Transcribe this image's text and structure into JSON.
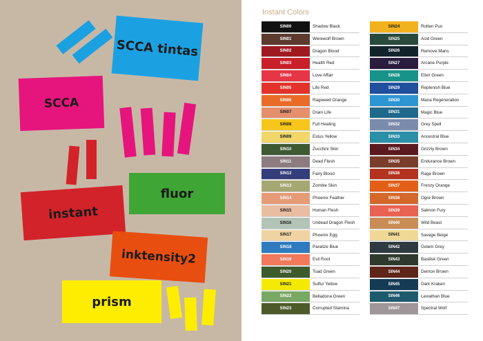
{
  "left_labels": {
    "scca_tintas": "SCCA tintas",
    "scca": "SCCA",
    "fluor": "fluor",
    "instant": "instant",
    "inktensity2": "inktensity2",
    "prism": "prism"
  },
  "palette": {
    "background": "#c7b8a6",
    "blue": "#1ba1e2",
    "magenta": "#e6157d",
    "red": "#d2232a",
    "green": "#3fa535",
    "orange": "#e84e0f",
    "yellow": "#ffed00"
  },
  "title": "Instant Colors",
  "left_column": [
    {
      "code": "SIN00",
      "name": "Shadow Black",
      "color": "#111111",
      "text_color": "#ffffff"
    },
    {
      "code": "SIN01",
      "name": "Werewolf Brown",
      "color": "#5c3a2e",
      "text_color": "#ffffff"
    },
    {
      "code": "SIN02",
      "name": "Dragon Blood",
      "color": "#9e1a20",
      "text_color": "#ffffff"
    },
    {
      "code": "SIN03",
      "name": "Health Red",
      "color": "#c8202a",
      "text_color": "#ffffff"
    },
    {
      "code": "SIN04",
      "name": "Love Affair",
      "color": "#e63546",
      "text_color": "#ffffff"
    },
    {
      "code": "SIN05",
      "name": "Life Red",
      "color": "#e2322b",
      "text_color": "#ffffff"
    },
    {
      "code": "SIN06",
      "name": "Ragweed Orange",
      "color": "#ea6b28",
      "text_color": "#ffffff"
    },
    {
      "code": "SIN07",
      "name": "Drain Life",
      "color": "#e58f6c",
      "text_color": "#1b1b1b"
    },
    {
      "code": "SIN08",
      "name": "Full Healing",
      "color": "#f7c61a",
      "text_color": "#1b1b1b"
    },
    {
      "code": "SIN09",
      "name": "Estus Yellow",
      "color": "#f1d66a",
      "text_color": "#1b1b1b"
    },
    {
      "code": "SIN10",
      "name": "Zucchini Skin",
      "color": "#3f5a33",
      "text_color": "#ffffff"
    },
    {
      "code": "SIN11",
      "name": "Dead Flesh",
      "color": "#8c7c80",
      "text_color": "#ffffff"
    },
    {
      "code": "SIN12",
      "name": "Fairy Blood",
      "color": "#343e7a",
      "text_color": "#ffffff"
    },
    {
      "code": "SIN13",
      "name": "Zombie Skin",
      "color": "#a6a873",
      "text_color": "#ffffff"
    },
    {
      "code": "SIN14",
      "name": "Phoenix Feather",
      "color": "#e69b77",
      "text_color": "#ffffff"
    },
    {
      "code": "SIN15",
      "name": "Human Flesh",
      "color": "#e9bda1",
      "text_color": "#1b1b1b"
    },
    {
      "code": "SIN16",
      "name": "Undead Dragon Flesh",
      "color": "#b3c4b7",
      "text_color": "#1b1b1b"
    },
    {
      "code": "SIN17",
      "name": "Phoenix Egg",
      "color": "#efd3a2",
      "text_color": "#1b1b1b"
    },
    {
      "code": "SIN18",
      "name": "Paralize Blue",
      "color": "#2f7bbf",
      "text_color": "#ffffff"
    },
    {
      "code": "SIN19",
      "name": "Evil Root",
      "color": "#f07a5b",
      "text_color": "#ffffff"
    },
    {
      "code": "SIN20",
      "name": "Toad Green",
      "color": "#3e5b2c",
      "text_color": "#ffffff"
    },
    {
      "code": "SIN21",
      "name": "Sulfur Yellow",
      "color": "#f4e900",
      "text_color": "#1b1b1b"
    },
    {
      "code": "SIN22",
      "name": "Belladona Green",
      "color": "#79a864",
      "text_color": "#ffffff"
    },
    {
      "code": "SIN23",
      "name": "Corrupted Stamina",
      "color": "#4d5a2a",
      "text_color": "#ffffff"
    }
  ],
  "right_column": [
    {
      "code": "SIN24",
      "name": "Rotten Pus",
      "color": "#f2b21f",
      "text_color": "#1b1b1b"
    },
    {
      "code": "SIN25",
      "name": "Acid Green",
      "color": "#2a4a3d",
      "text_color": "#ffffff"
    },
    {
      "code": "SIN26",
      "name": "Remove Mans",
      "color": "#12232c",
      "text_color": "#ffffff"
    },
    {
      "code": "SIN27",
      "name": "Arcane Purple",
      "color": "#2a1c3e",
      "text_color": "#ffffff"
    },
    {
      "code": "SIN28",
      "name": "Elixir Green",
      "color": "#18938a",
      "text_color": "#ffffff"
    },
    {
      "code": "SIN29",
      "name": "Replenish Blue",
      "color": "#1f4f9e",
      "text_color": "#ffffff"
    },
    {
      "code": "SIN30",
      "name": "Mana Regeneration",
      "color": "#2c96d2",
      "text_color": "#ffffff"
    },
    {
      "code": "SIN31",
      "name": "Magic Blue",
      "color": "#1f6a8c",
      "text_color": "#ffffff"
    },
    {
      "code": "SIN32",
      "name": "Grey Spell",
      "color": "#7b8bab",
      "text_color": "#ffffff"
    },
    {
      "code": "SIN33",
      "name": "Ancestral Blue",
      "color": "#2b8fa8",
      "text_color": "#ffffff"
    },
    {
      "code": "SIN34",
      "name": "Grizzly Brown",
      "color": "#5a1a1f",
      "text_color": "#ffffff"
    },
    {
      "code": "SIN35",
      "name": "Endurance Brown",
      "color": "#7a3e2b",
      "text_color": "#ffffff"
    },
    {
      "code": "SIN36",
      "name": "Rage Brown",
      "color": "#b3331f",
      "text_color": "#ffffff"
    },
    {
      "code": "SIN37",
      "name": "Frenzy Orange",
      "color": "#e35f17",
      "text_color": "#ffffff"
    },
    {
      "code": "SIN38",
      "name": "Ogre Brown",
      "color": "#d3682a",
      "text_color": "#ffffff"
    },
    {
      "code": "SIN39",
      "name": "Salmon Fury",
      "color": "#e96151",
      "text_color": "#ffffff"
    },
    {
      "code": "SIN40",
      "name": "Wild Beast",
      "color": "#c98c55",
      "text_color": "#ffffff"
    },
    {
      "code": "SIN41",
      "name": "Savage Beige",
      "color": "#efd896",
      "text_color": "#1b1b1b"
    },
    {
      "code": "SIN42",
      "name": "Golem Grey",
      "color": "#2e3a3f",
      "text_color": "#ffffff"
    },
    {
      "code": "SIN43",
      "name": "Basilisk Green",
      "color": "#2e3a2c",
      "text_color": "#ffffff"
    },
    {
      "code": "SIN44",
      "name": "Demon Brown",
      "color": "#5e2519",
      "text_color": "#ffffff"
    },
    {
      "code": "SIN45",
      "name": "Dark Kraken",
      "color": "#153b55",
      "text_color": "#ffffff"
    },
    {
      "code": "SIN46",
      "name": "Leviathan Blue",
      "color": "#1d5a6e",
      "text_color": "#ffffff"
    },
    {
      "code": "SIN47",
      "name": "Spectral Wolf",
      "color": "#9e9699",
      "text_color": "#ffffff"
    }
  ]
}
